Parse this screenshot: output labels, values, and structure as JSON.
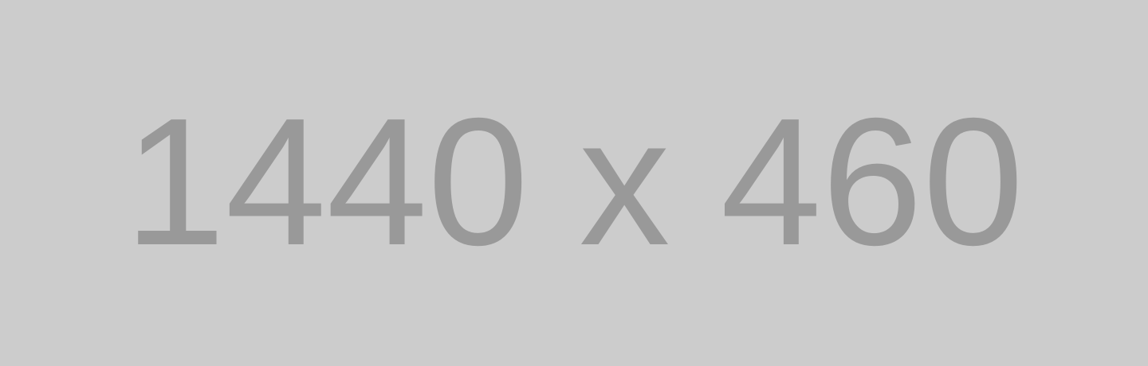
{
  "placeholder": {
    "label": "1440 x 460"
  },
  "colors": {
    "background": "#cccccc",
    "text": "#999999"
  }
}
